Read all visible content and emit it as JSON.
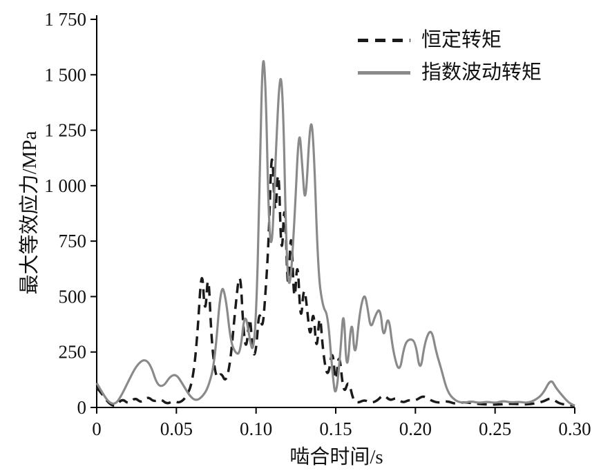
{
  "figure": {
    "background": "#ffffff",
    "axis_color": "#000000"
  },
  "chart_data": {
    "type": "line",
    "title": "",
    "xlabel": "啮合时间/s",
    "ylabel": "最大等效应力/MPa",
    "xlim": [
      0,
      0.3
    ],
    "ylim": [
      0,
      1750
    ],
    "grid": false,
    "legend_position": "top-right-inside",
    "x_ticks": [
      {
        "value": 0,
        "label": "0"
      },
      {
        "value": 0.05,
        "label": "0.05"
      },
      {
        "value": 0.1,
        "label": "0.10"
      },
      {
        "value": 0.15,
        "label": "0.15"
      },
      {
        "value": 0.2,
        "label": "0.20"
      },
      {
        "value": 0.25,
        "label": "0.25"
      },
      {
        "value": 0.3,
        "label": "0.30"
      }
    ],
    "y_ticks": [
      {
        "value": 0,
        "label": "0"
      },
      {
        "value": 250,
        "label": "250"
      },
      {
        "value": 500,
        "label": "500"
      },
      {
        "value": 750,
        "label": "750"
      },
      {
        "value": 1000,
        "label": "1 000"
      },
      {
        "value": 1250,
        "label": "1 250"
      },
      {
        "value": 1500,
        "label": "1 500"
      },
      {
        "value": 1750,
        "label": "1 750"
      }
    ],
    "series": [
      {
        "name": "恒定转矩",
        "style": "dashed",
        "color": "#1a1a1a",
        "x": [
          0,
          0.004,
          0.008,
          0.012,
          0.016,
          0.02,
          0.024,
          0.028,
          0.032,
          0.036,
          0.04,
          0.044,
          0.048,
          0.052,
          0.056,
          0.06,
          0.063,
          0.066,
          0.068,
          0.07,
          0.072,
          0.075,
          0.078,
          0.081,
          0.084,
          0.087,
          0.09,
          0.092,
          0.094,
          0.096,
          0.098,
          0.1,
          0.102,
          0.104,
          0.106,
          0.108,
          0.11,
          0.112,
          0.114,
          0.116,
          0.118,
          0.12,
          0.122,
          0.124,
          0.126,
          0.128,
          0.13,
          0.132,
          0.134,
          0.136,
          0.138,
          0.14,
          0.142,
          0.145,
          0.148,
          0.15,
          0.152,
          0.155,
          0.158,
          0.161,
          0.164,
          0.168,
          0.172,
          0.176,
          0.18,
          0.184,
          0.188,
          0.192,
          0.196,
          0.2,
          0.205,
          0.21,
          0.215,
          0.22,
          0.225,
          0.23,
          0.24,
          0.25,
          0.26,
          0.27,
          0.28,
          0.285,
          0.29,
          0.295,
          0.3
        ],
        "y": [
          90,
          55,
          15,
          5,
          40,
          15,
          45,
          20,
          50,
          25,
          40,
          15,
          30,
          20,
          45,
          110,
          300,
          660,
          390,
          640,
          300,
          120,
          160,
          110,
          210,
          450,
          640,
          350,
          250,
          450,
          230,
          250,
          450,
          340,
          520,
          760,
          1230,
          800,
          1150,
          620,
          990,
          450,
          860,
          420,
          700,
          360,
          560,
          450,
          300,
          460,
          230,
          450,
          250,
          120,
          280,
          80,
          270,
          50,
          130,
          30,
          20,
          35,
          20,
          30,
          60,
          30,
          45,
          20,
          35,
          30,
          55,
          30,
          20,
          30,
          15,
          25,
          15,
          12,
          18,
          12,
          25,
          45,
          18,
          12,
          8
        ]
      },
      {
        "name": "指数波动转矩",
        "style": "solid",
        "color": "#8a8a8a",
        "x": [
          0,
          0.004,
          0.008,
          0.012,
          0.016,
          0.02,
          0.025,
          0.03,
          0.034,
          0.038,
          0.042,
          0.046,
          0.05,
          0.054,
          0.058,
          0.062,
          0.066,
          0.07,
          0.074,
          0.078,
          0.081,
          0.084,
          0.087,
          0.09,
          0.093,
          0.096,
          0.098,
          0.1,
          0.102,
          0.104,
          0.106,
          0.108,
          0.11,
          0.112,
          0.115,
          0.117,
          0.119,
          0.121,
          0.124,
          0.127,
          0.129,
          0.131,
          0.134,
          0.136,
          0.139,
          0.142,
          0.145,
          0.148,
          0.15,
          0.153,
          0.155,
          0.157,
          0.16,
          0.162,
          0.165,
          0.168,
          0.17,
          0.172,
          0.175,
          0.178,
          0.18,
          0.183,
          0.186,
          0.19,
          0.193,
          0.196,
          0.2,
          0.203,
          0.206,
          0.21,
          0.213,
          0.216,
          0.22,
          0.225,
          0.23,
          0.235,
          0.24,
          0.245,
          0.25,
          0.255,
          0.26,
          0.265,
          0.27,
          0.275,
          0.28,
          0.285,
          0.288,
          0.292,
          0.296,
          0.3
        ],
        "y": [
          110,
          60,
          20,
          15,
          60,
          120,
          190,
          220,
          190,
          100,
          95,
          140,
          150,
          105,
          55,
          30,
          45,
          90,
          200,
          560,
          500,
          300,
          245,
          240,
          440,
          310,
          245,
          400,
          900,
          1620,
          1480,
          820,
          700,
          1080,
          1540,
          1380,
          700,
          500,
          820,
          1290,
          1080,
          890,
          1310,
          1230,
          600,
          450,
          420,
          150,
          35,
          250,
          470,
          120,
          430,
          200,
          430,
          520,
          450,
          350,
          420,
          450,
          300,
          430,
          250,
          150,
          280,
          310,
          300,
          150,
          300,
          360,
          250,
          180,
          70,
          30,
          20,
          28,
          20,
          26,
          20,
          30,
          22,
          26,
          20,
          32,
          60,
          130,
          90,
          55,
          22,
          8
        ]
      }
    ]
  }
}
